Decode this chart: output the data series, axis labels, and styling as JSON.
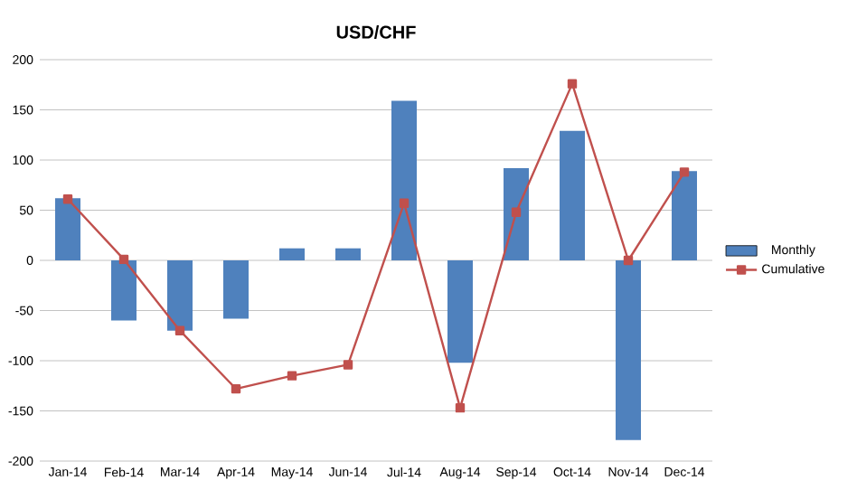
{
  "chart_data": {
    "type": "bar",
    "title": "USD/CHF",
    "categories": [
      "Jan-14",
      "Feb-14",
      "Mar-14",
      "Apr-14",
      "May-14",
      "Jun-14",
      "Jul-14",
      "Aug-14",
      "Sep-14",
      "Oct-14",
      "Nov-14",
      "Dec-14"
    ],
    "series": [
      {
        "name": "Monthly",
        "color": "#4f81bd",
        "values": [
          62,
          -60,
          -70,
          -58,
          12,
          12,
          159,
          -102,
          92,
          129,
          -179,
          89
        ]
      },
      {
        "name": "Cumulative",
        "type": "line",
        "marker": "square",
        "color": "#c0504d",
        "values": [
          61,
          1,
          -70,
          -128,
          -115,
          -104,
          57,
          -147,
          48,
          176,
          0,
          88
        ]
      }
    ],
    "ylim": [
      -200,
      200
    ],
    "yticks": [
      -200,
      -150,
      -100,
      -50,
      0,
      50,
      100,
      150,
      200
    ],
    "grid": "y",
    "legend": "right"
  }
}
